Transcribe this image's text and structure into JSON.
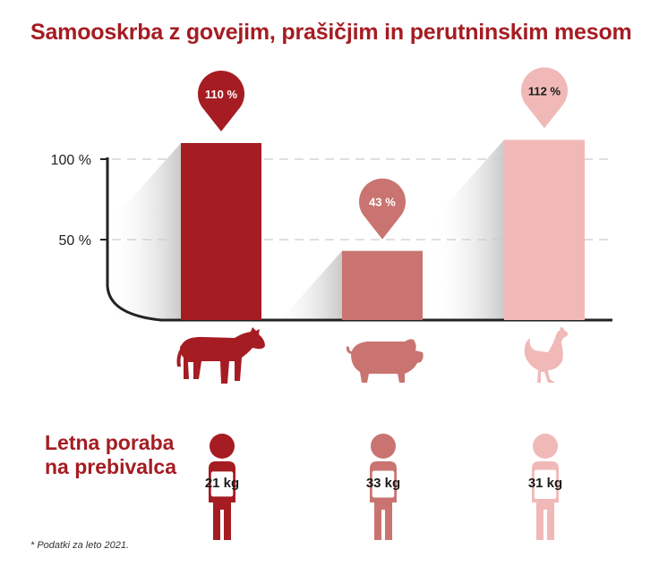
{
  "title": "Samooskrba z govejim, prašičjim in perutninskim mesom",
  "chart_data": {
    "type": "bar",
    "categories": [
      "govedo",
      "prašič",
      "perutnina"
    ],
    "values": [
      110,
      43,
      112
    ],
    "value_labels": [
      "110 %",
      "43 %",
      "112 %"
    ],
    "y_ticks": [
      100,
      50
    ],
    "y_tick_labels": [
      "100 %",
      "50 %"
    ],
    "ylim": [
      0,
      120
    ],
    "grid": true,
    "colors": [
      "#a51c22",
      "#c97470",
      "#f0b9b7"
    ]
  },
  "consumption": {
    "heading_line1": "Letna poraba",
    "heading_line2": "na prebivalca",
    "values": [
      "21 kg",
      "33 kg",
      "31 kg"
    ],
    "fill_levels": [
      0.35,
      0.55,
      0.8
    ]
  },
  "footnote": "* Podatki za leto 2021."
}
